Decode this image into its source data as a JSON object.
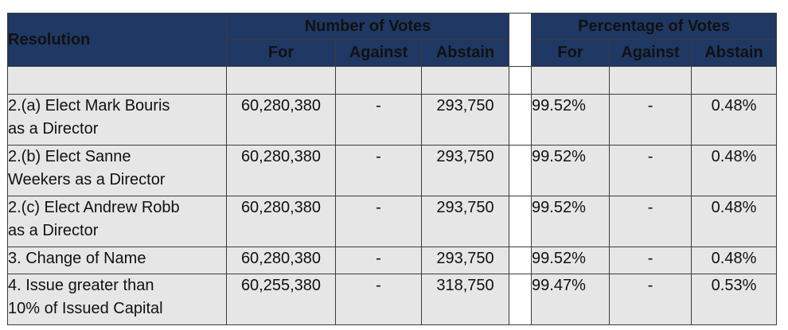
{
  "headers": {
    "resolution": "Resolution",
    "number_group": "Number of Votes",
    "percentage_group": "Percentage of Votes",
    "for": "For",
    "against": "Against",
    "abstain": "Abstain"
  },
  "rows": [
    {
      "line1": "2.(a) Elect Mark Bouris",
      "line2": "as a Director",
      "num_for": "60,280,380",
      "num_against": "-",
      "num_abstain": "293,750",
      "pct_for": "99.52%",
      "pct_against": "-",
      "pct_abstain": "0.48%"
    },
    {
      "line1": "2.(b) Elect Sanne",
      "line2": "Weekers as a Director",
      "num_for": "60,280,380",
      "num_against": "-",
      "num_abstain": "293,750",
      "pct_for": "99.52%",
      "pct_against": "-",
      "pct_abstain": "0.48%"
    },
    {
      "line1": "2.(c) Elect Andrew Robb",
      "line2": "as a Director",
      "num_for": "60,280,380",
      "num_against": "-",
      "num_abstain": "293,750",
      "pct_for": "99.52%",
      "pct_against": "-",
      "pct_abstain": "0.48%"
    },
    {
      "line1": "3. Change of Name",
      "line2": "",
      "num_for": "60,280,380",
      "num_against": "-",
      "num_abstain": "293,750",
      "pct_for": "99.52%",
      "pct_against": "-",
      "pct_abstain": "0.48%"
    },
    {
      "line1": "4. Issue greater than",
      "line2": "10% of Issued Capital",
      "num_for": "60,255,380",
      "num_against": "-",
      "num_abstain": "318,750",
      "pct_for": "99.47%",
      "pct_against": "-",
      "pct_abstain": "0.53%"
    }
  ]
}
